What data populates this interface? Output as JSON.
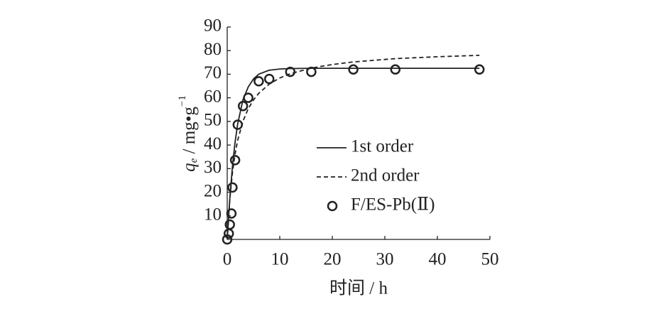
{
  "chart_data": {
    "type": "line",
    "xlabel": "时间 / h",
    "ylabel_parts": [
      "q",
      "e",
      " / mg•g",
      "−1"
    ],
    "xlim": [
      0,
      50
    ],
    "xticks": [
      0,
      10,
      20,
      30,
      40,
      50
    ],
    "ylim": [
      0,
      90
    ],
    "yticks": [
      10,
      20,
      30,
      40,
      50,
      60,
      70,
      80,
      90
    ],
    "series": [
      {
        "name": "1st order",
        "kind": "line",
        "dash": "solid",
        "color": "#222",
        "x": [
          0,
          0.5,
          1,
          1.5,
          2,
          3,
          4,
          5,
          6,
          8,
          10,
          12,
          16,
          20,
          24,
          32,
          40,
          48
        ],
        "values": [
          0,
          17.5,
          31.1,
          41.3,
          49.0,
          59.2,
          64.6,
          68.0,
          70.0,
          71.7,
          72.2,
          72.4,
          72.5,
          72.5,
          72.5,
          72.5,
          72.5,
          72.5
        ]
      },
      {
        "name": "2nd order",
        "kind": "line",
        "dash": "dashed",
        "color": "#222",
        "x": [
          0,
          0.5,
          1,
          1.5,
          2,
          3,
          4,
          5,
          6,
          8,
          10,
          12,
          16,
          20,
          24,
          32,
          40,
          48
        ],
        "values": [
          0,
          17.2,
          28.4,
          36.3,
          42.1,
          50.1,
          55.4,
          59.1,
          61.9,
          65.8,
          68.4,
          70.2,
          72.6,
          74.1,
          75.2,
          76.6,
          77.4,
          78.0
        ]
      },
      {
        "name": "F/ES-Pb(Ⅱ)",
        "kind": "scatter",
        "color": "#222",
        "x": [
          0,
          0.3,
          0.5,
          0.8,
          1,
          1.5,
          2,
          3,
          4,
          6,
          8,
          12,
          16,
          24,
          32,
          48
        ],
        "values": [
          0,
          2.5,
          6.3,
          11,
          22,
          33.6,
          48.6,
          56.5,
          60,
          67,
          68,
          71,
          71,
          72,
          72,
          72
        ]
      }
    ]
  }
}
